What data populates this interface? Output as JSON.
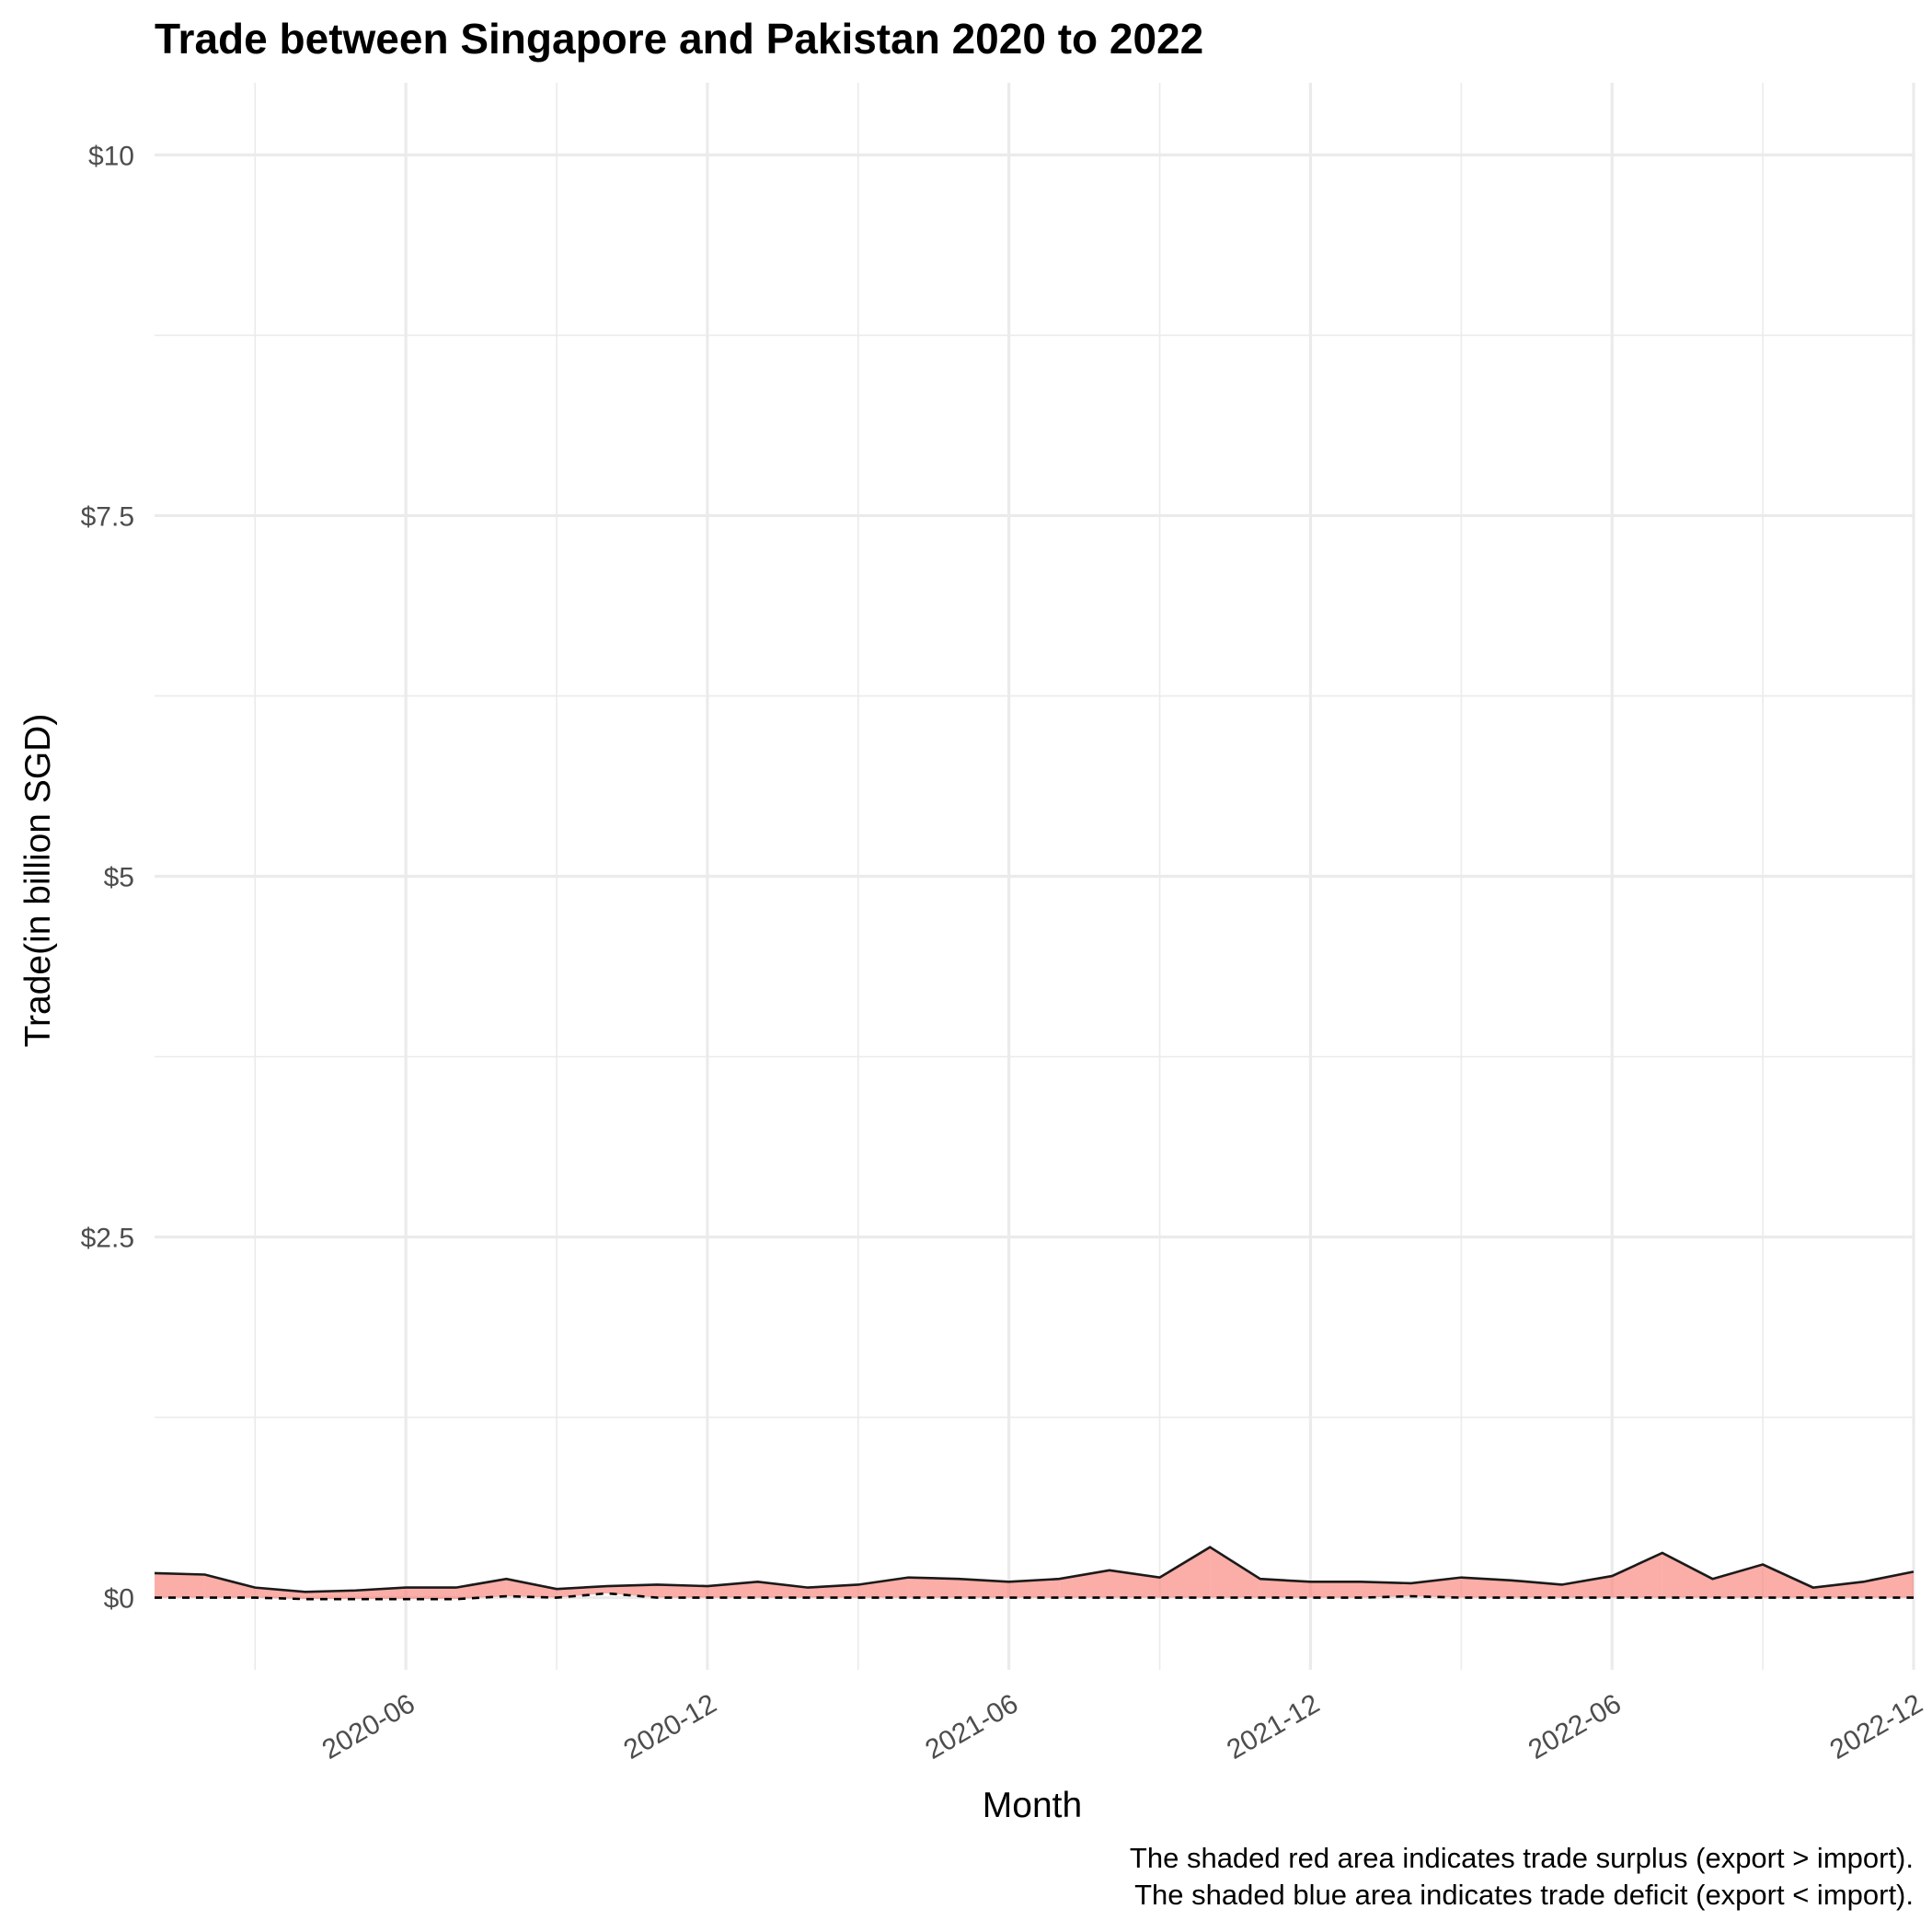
{
  "chart_data": {
    "type": "area",
    "title": "Trade between Singapore and Pakistan  2020 to 2022",
    "xlabel": "Month",
    "ylabel": "Trade(in billion SGD)",
    "ylim": [
      -0.5,
      10.5
    ],
    "y_ticks": [
      {
        "value": 0,
        "label": "$0"
      },
      {
        "value": 2.5,
        "label": "$2.5"
      },
      {
        "value": 5,
        "label": "$5"
      },
      {
        "value": 7.5,
        "label": "$7.5"
      },
      {
        "value": 10,
        "label": "$10"
      }
    ],
    "x_ticks": [
      "2020-06",
      "2020-12",
      "2021-06",
      "2021-12",
      "2022-06",
      "2022-12"
    ],
    "x": [
      "2020-01",
      "2020-02",
      "2020-03",
      "2020-04",
      "2020-05",
      "2020-06",
      "2020-07",
      "2020-08",
      "2020-09",
      "2020-10",
      "2020-11",
      "2020-12",
      "2021-01",
      "2021-02",
      "2021-03",
      "2021-04",
      "2021-05",
      "2021-06",
      "2021-07",
      "2021-08",
      "2021-09",
      "2021-10",
      "2021-11",
      "2021-12",
      "2022-01",
      "2022-02",
      "2022-03",
      "2022-04",
      "2022-05",
      "2022-06",
      "2022-07",
      "2022-08",
      "2022-09",
      "2022-10",
      "2022-11",
      "2022-12"
    ],
    "series": [
      {
        "name": "export",
        "line": "solid",
        "values": [
          0.17,
          0.16,
          0.07,
          0.04,
          0.05,
          0.07,
          0.07,
          0.13,
          0.06,
          0.08,
          0.09,
          0.08,
          0.11,
          0.07,
          0.09,
          0.14,
          0.13,
          0.11,
          0.13,
          0.19,
          0.14,
          0.35,
          0.13,
          0.11,
          0.11,
          0.1,
          0.14,
          0.12,
          0.09,
          0.15,
          0.31,
          0.13,
          0.23,
          0.07,
          0.11,
          0.18
        ]
      },
      {
        "name": "import",
        "line": "dashed",
        "values": [
          0.0,
          0.0,
          0.0,
          -0.01,
          -0.01,
          -0.01,
          -0.01,
          0.01,
          0.0,
          0.03,
          0.0,
          0.0,
          0.0,
          0.0,
          0.0,
          0.0,
          0.0,
          0.0,
          0.0,
          0.0,
          0.0,
          0.0,
          0.0,
          0.0,
          0.0,
          0.01,
          0.0,
          0.0,
          0.0,
          0.0,
          0.0,
          0.0,
          0.0,
          0.0,
          0.0,
          0.0
        ]
      }
    ],
    "surplus_color": "#F8766D",
    "deficit_color": "#619CFF",
    "grid": true,
    "caption": [
      "The shaded red area indicates trade surplus (export > import).",
      "The shaded blue area indicates trade deficit (export < import)."
    ]
  }
}
